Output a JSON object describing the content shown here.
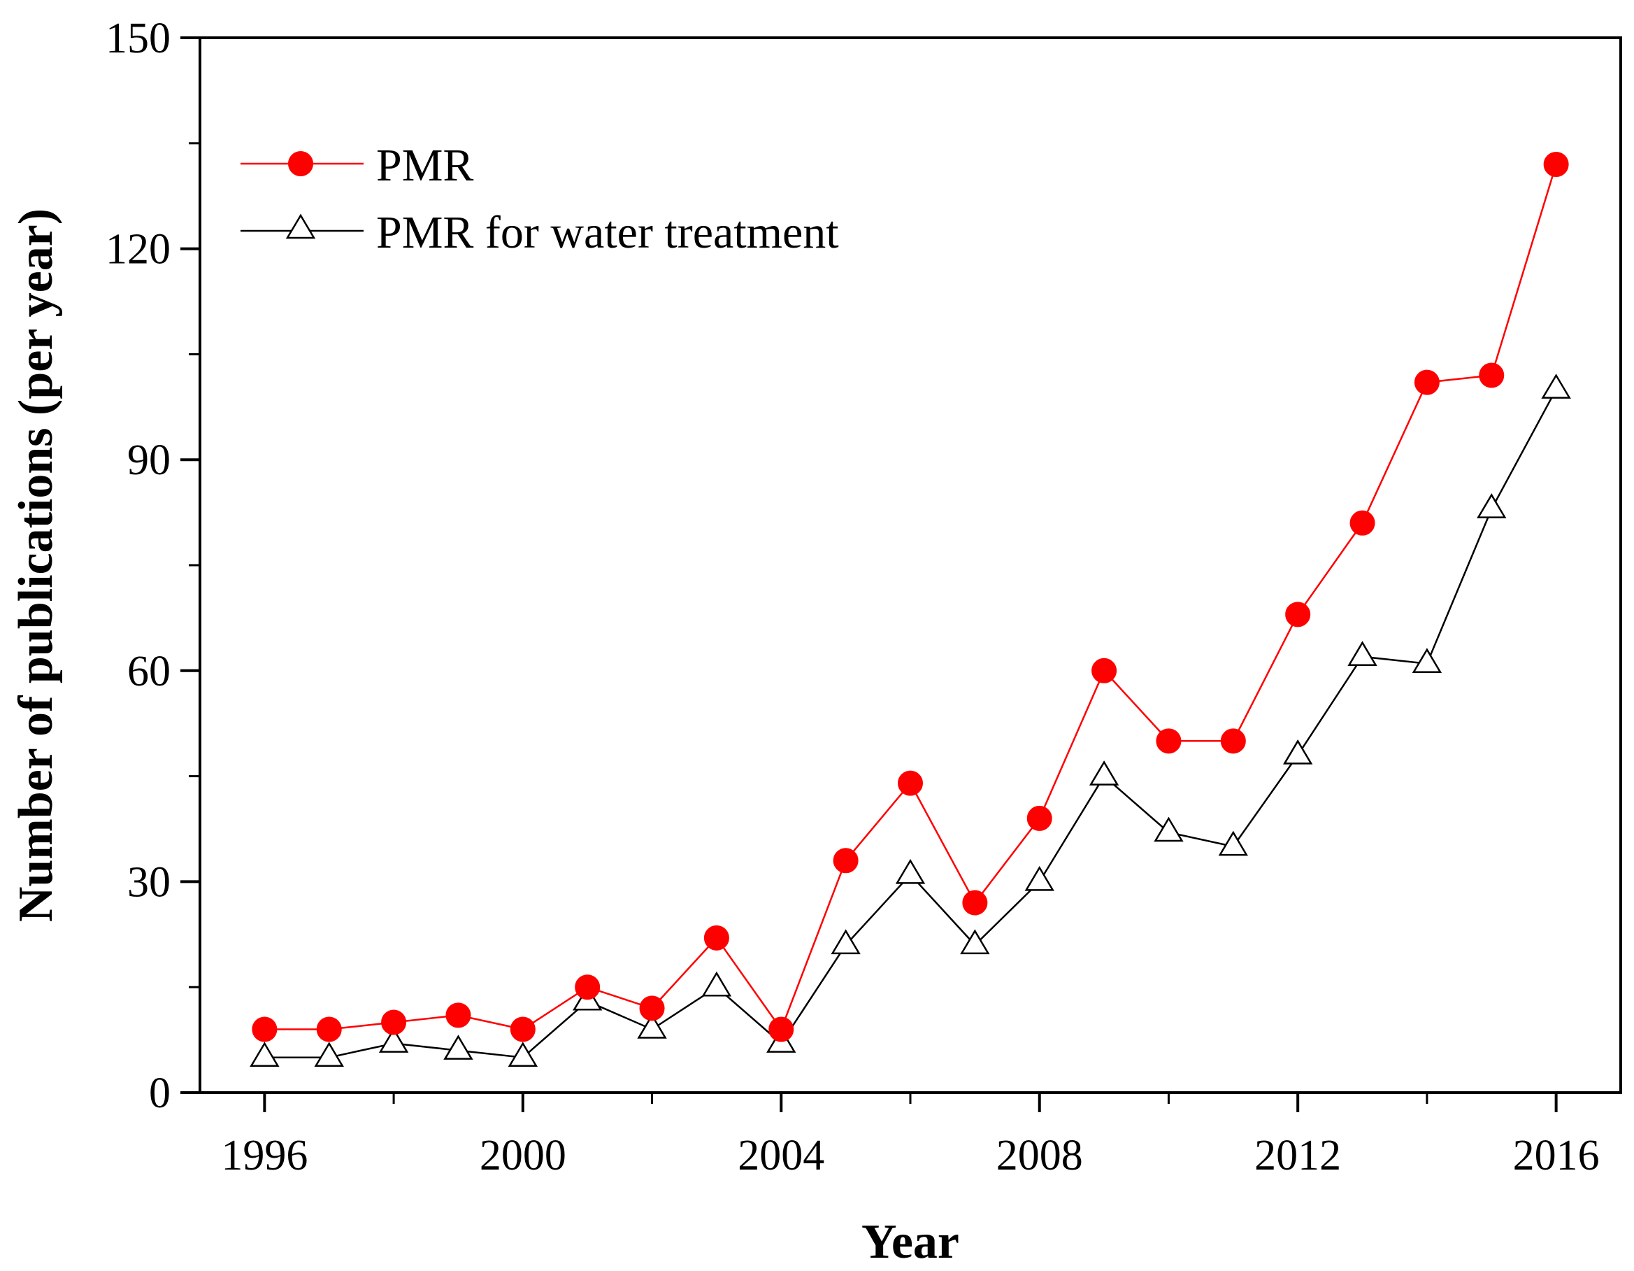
{
  "chart_data": {
    "type": "line",
    "title": "",
    "xlabel": "Year",
    "ylabel": "Number of publications (per year)",
    "xlim": [
      1995,
      2017
    ],
    "ylim": [
      0,
      150
    ],
    "x_ticks": [
      1996,
      2000,
      2004,
      2008,
      2012,
      2016
    ],
    "x_minor_ticks": [
      1998,
      2002,
      2006,
      2010,
      2014
    ],
    "y_ticks": [
      0,
      30,
      60,
      90,
      120,
      150
    ],
    "y_minor_ticks": [
      15,
      45,
      75,
      105,
      135
    ],
    "legend_position": "top-left",
    "x": [
      1996,
      1997,
      1998,
      1999,
      2000,
      2001,
      2002,
      2003,
      2004,
      2005,
      2006,
      2007,
      2008,
      2009,
      2010,
      2011,
      2012,
      2013,
      2014,
      2015,
      2016
    ],
    "series": [
      {
        "name": "PMR",
        "color": "#ff0000",
        "marker": "filled-circle",
        "values": [
          9,
          9,
          10,
          11,
          9,
          15,
          12,
          22,
          9,
          33,
          44,
          27,
          39,
          60,
          50,
          50,
          68,
          81,
          101,
          102,
          132
        ]
      },
      {
        "name": "PMR for water treatment",
        "color": "#000000",
        "marker": "open-triangle",
        "values": [
          5,
          5,
          7,
          6,
          5,
          13,
          9,
          15,
          7,
          21,
          31,
          21,
          30,
          45,
          37,
          35,
          48,
          62,
          61,
          83,
          100
        ]
      }
    ]
  }
}
